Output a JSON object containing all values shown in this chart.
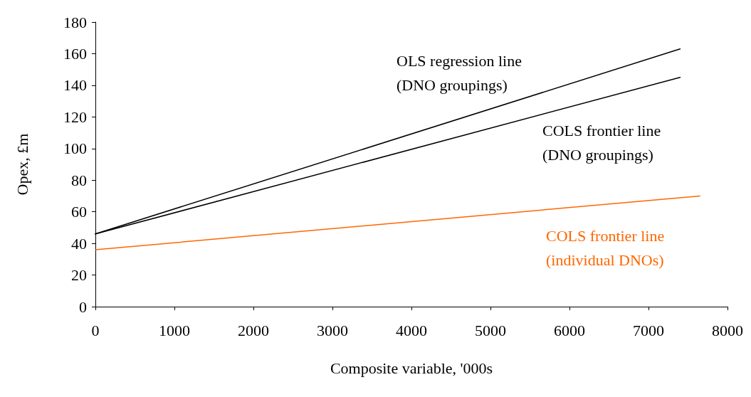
{
  "chart_data": {
    "type": "line",
    "xlabel": "Composite variable, '000s",
    "ylabel": "Opex, £m",
    "xlim": [
      0,
      8000
    ],
    "xticks": [
      0,
      1000,
      2000,
      3000,
      4000,
      5000,
      6000,
      7000,
      8000
    ],
    "ylim": [
      0,
      180
    ],
    "yticks": [
      0,
      20,
      40,
      60,
      80,
      100,
      120,
      140,
      160,
      180
    ],
    "grid": false,
    "marker": "none",
    "line_style": "solid",
    "series": [
      {
        "color": "#000000",
        "x": [
          0,
          7400
        ],
        "values": [
          46,
          163
        ]
      },
      {
        "color": "#000000",
        "x": [
          0,
          7400
        ],
        "values": [
          46,
          145
        ]
      },
      {
        "color": "#ff6600",
        "x": [
          0,
          7650
        ],
        "values": [
          36,
          70
        ]
      }
    ],
    "annotations": [
      "OLS regression line\n(DNO groupings)",
      "COLS frontier line\n(DNO groupings)",
      "COLS frontier line\n(individual DNOs)"
    ]
  }
}
